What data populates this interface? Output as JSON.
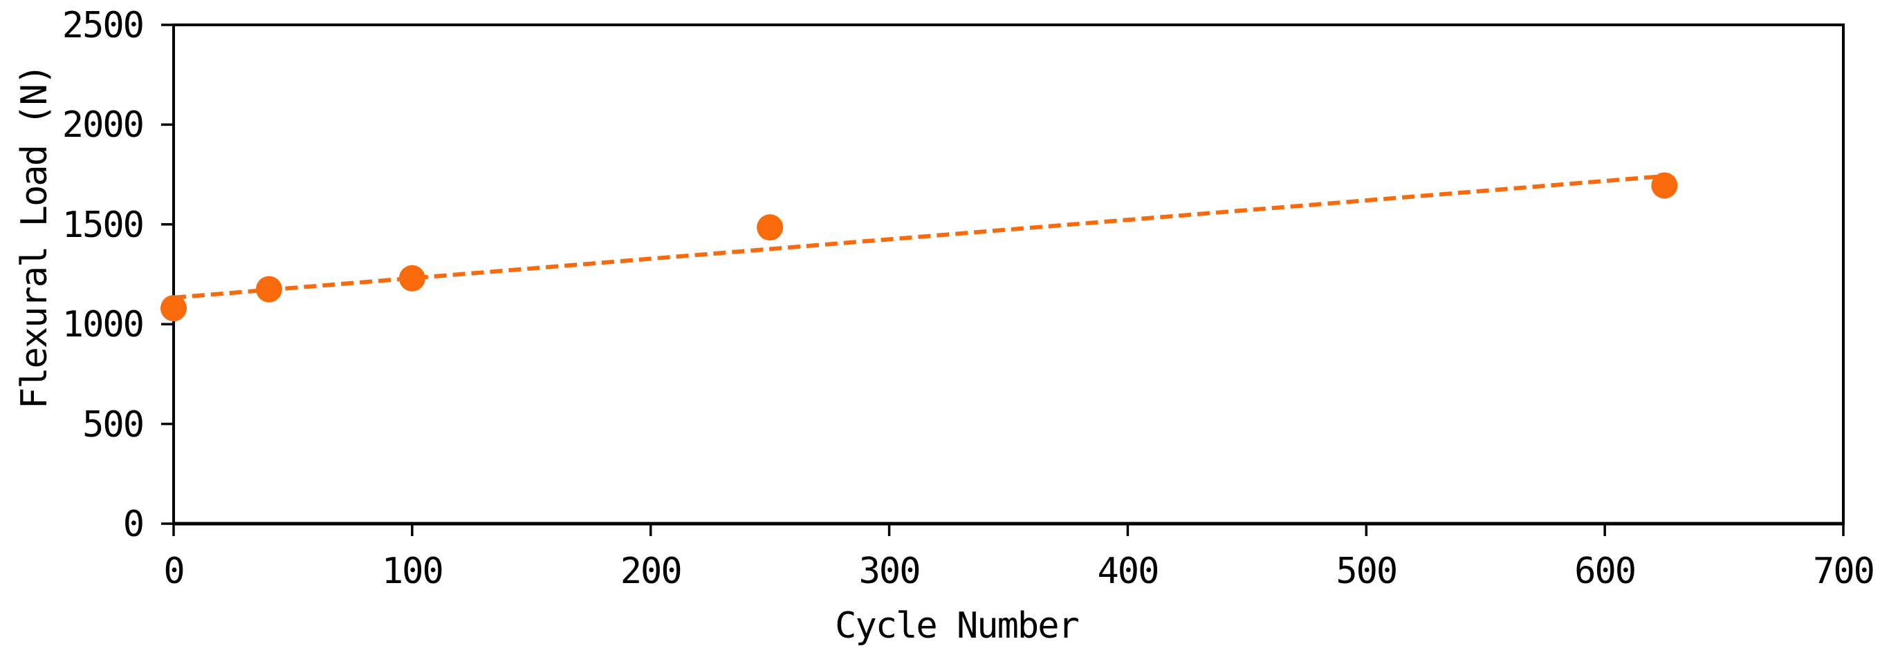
{
  "page": {
    "background": "#FFFFFF"
  },
  "chart_data": {
    "type": "scatter",
    "title": "",
    "xlabel": "Cycle Number",
    "ylabel": "Flexural Load (N)",
    "xlim": [
      0,
      700
    ],
    "ylim": [
      0,
      2500
    ],
    "x_ticks": [
      0,
      100,
      200,
      300,
      400,
      500,
      600,
      700
    ],
    "y_ticks": [
      0,
      500,
      1000,
      1500,
      2000,
      2500
    ],
    "grid": false,
    "legend_position": "none",
    "axis_color": "#000000",
    "text_color": "#000000",
    "frame": "full-box",
    "series": [
      {
        "name": "flexural-load",
        "marker": "circle",
        "marker_color": "#F96A0D",
        "marker_diameter_px": 38,
        "points": [
          {
            "x": 0,
            "y": 1080
          },
          {
            "x": 40,
            "y": 1175
          },
          {
            "x": 100,
            "y": 1230
          },
          {
            "x": 250,
            "y": 1485
          },
          {
            "x": 625,
            "y": 1695
          }
        ]
      }
    ],
    "trendline": {
      "type": "linear",
      "style": "dashed",
      "color": "#F96A0D",
      "start": {
        "x": 0,
        "y": 1133
      },
      "end": {
        "x": 625,
        "y": 1742
      }
    }
  }
}
